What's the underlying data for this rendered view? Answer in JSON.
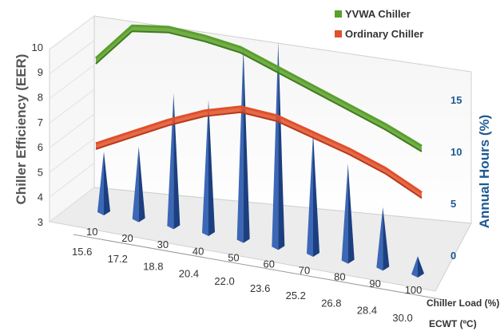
{
  "chart_data": {
    "type": "line",
    "title": "",
    "ylabel_left": "Chiller Efficiency (EER)",
    "ylabel_right": "Annual Hours (%)",
    "xlabel_primary": "Chiller Load (%)",
    "xlabel_secondary": "ECWT (ºC)",
    "left_ticks": [
      "10",
      "9",
      "8",
      "7",
      "6",
      "5",
      "4",
      "3"
    ],
    "right_ticks": [
      "15",
      "10",
      "5",
      "0"
    ],
    "load_ticks": [
      "10",
      "20",
      "30",
      "40",
      "50",
      "60",
      "70",
      "80",
      "90",
      "100"
    ],
    "ecwt_ticks": [
      "15.6",
      "17.2",
      "18.8",
      "20.4",
      "22.0",
      "23.6",
      "25.2",
      "26.8",
      "28.4",
      "30.0"
    ],
    "categories": [
      10,
      20,
      30,
      40,
      50,
      60,
      70,
      80,
      90,
      100
    ],
    "ylim_left": [
      3,
      10
    ],
    "ylim_right": [
      0,
      17.5
    ],
    "series": [
      {
        "name": "YVWA Chiller",
        "color": "#5aa02c",
        "axis": "left",
        "values": [
          7.6,
          9.0,
          9.1,
          8.9,
          8.6,
          8.0,
          7.4,
          6.8,
          6.2,
          5.5
        ]
      },
      {
        "name": "Ordinary Chiller",
        "color": "#e0502a",
        "axis": "left",
        "values": [
          4.3,
          4.9,
          5.5,
          6.0,
          6.3,
          6.1,
          5.6,
          5.1,
          4.5,
          3.7
        ]
      },
      {
        "name": "Annual Hours",
        "color": "#2e57a8",
        "axis": "right",
        "type": "bar",
        "values": [
          5,
          6,
          11,
          11,
          16,
          17,
          10,
          8,
          5,
          1.5
        ]
      }
    ],
    "legend": {
      "placement": "top-right"
    }
  }
}
